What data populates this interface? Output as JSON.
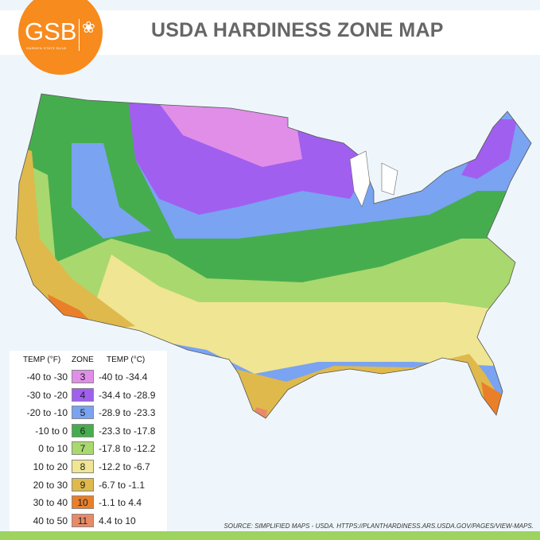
{
  "header": {
    "title": "USDA HARDINESS ZONE MAP",
    "logo_text": "GSB",
    "logo_subtext": "GARDEN STATE BULB"
  },
  "legend": {
    "headers": {
      "temp_f": "TEMP (°F)",
      "zone": "ZONE",
      "temp_c": "TEMP (°C)"
    },
    "rows": [
      {
        "f": "-40 to -30",
        "zone": "3",
        "c": "-40 to -34.4",
        "color": "#e08ee8"
      },
      {
        "f": "-30 to -20",
        "zone": "4",
        "c": "-34.4 to -28.9",
        "color": "#a15ff0"
      },
      {
        "f": "-20 to -10",
        "zone": "5",
        "c": "-28.9 to -23.3",
        "color": "#7aa3f2"
      },
      {
        "f": "-10 to 0",
        "zone": "6",
        "c": "-23.3 to -17.8",
        "color": "#46ad4e"
      },
      {
        "f": "0 to 10",
        "zone": "7",
        "c": "-17.8 to -12.2",
        "color": "#a9d86e"
      },
      {
        "f": "10 to 20",
        "zone": "8",
        "c": "-12.2 to -6.7",
        "color": "#f0e592"
      },
      {
        "f": "20 to 30",
        "zone": "9",
        "c": "-6.7 to -1.1",
        "color": "#dfb94c"
      },
      {
        "f": "30 to 40",
        "zone": "10",
        "c": "-1.1 to 4.4",
        "color": "#ea7f2a"
      },
      {
        "f": "40 to 50",
        "zone": "11",
        "c": "4.4 to 10",
        "color": "#e98a66"
      }
    ]
  },
  "source": "SOURCE: SIMPLIFIED MAPS - USDA. HTTPS://PLANTHARDINESS.ARS.USDA.GOV/PAGES/VIEW-MAPS."
}
